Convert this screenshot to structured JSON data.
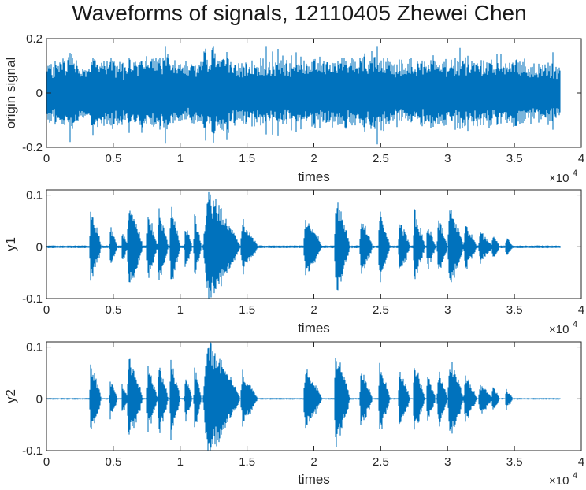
{
  "title": "Waveforms of signals, 12110405 Zhewei Chen",
  "chart_data": [
    {
      "type": "line",
      "ylabel": "origin signal",
      "xlabel": "times",
      "x_exponent_base": "×10",
      "x_exponent_power": "4",
      "xlim": [
        0,
        40000
      ],
      "ylim": [
        -0.2,
        0.2
      ],
      "xticks": [
        0,
        5000,
        10000,
        15000,
        20000,
        25000,
        30000,
        35000,
        40000
      ],
      "xtick_labels": [
        "0",
        "0.5",
        "1",
        "1.5",
        "2",
        "2.5",
        "3",
        "3.5",
        "4"
      ],
      "yticks": [
        -0.2,
        0,
        0.2
      ],
      "ytick_labels": [
        "-0.2",
        "0",
        "0.2"
      ],
      "series_color": "#0072BD",
      "samples_x_end": 38400,
      "envelope_x": [
        0,
        1000,
        2000,
        3000,
        4000,
        5000,
        6000,
        7000,
        8000,
        9000,
        10000,
        11000,
        12000,
        13000,
        14000,
        15000,
        16000,
        17000,
        18000,
        19000,
        20000,
        21000,
        22000,
        23000,
        24000,
        25000,
        26000,
        27000,
        28000,
        29000,
        30000,
        31000,
        32000,
        33000,
        34000,
        35000,
        36000,
        37000,
        38400
      ],
      "envelope_amp": [
        0.1,
        0.12,
        0.13,
        0.11,
        0.13,
        0.12,
        0.1,
        0.13,
        0.12,
        0.14,
        0.11,
        0.12,
        0.14,
        0.16,
        0.12,
        0.11,
        0.12,
        0.12,
        0.1,
        0.12,
        0.13,
        0.11,
        0.13,
        0.12,
        0.13,
        0.14,
        0.12,
        0.12,
        0.11,
        0.13,
        0.12,
        0.13,
        0.13,
        0.12,
        0.12,
        0.12,
        0.11,
        0.11,
        0.1
      ],
      "min_value": -0.2,
      "max_value": 0.17
    },
    {
      "type": "line",
      "ylabel": "y1",
      "xlabel": "times",
      "x_exponent_base": "×10",
      "x_exponent_power": "4",
      "xlim": [
        0,
        40000
      ],
      "ylim": [
        -0.1,
        0.11
      ],
      "xticks": [
        0,
        5000,
        10000,
        15000,
        20000,
        25000,
        30000,
        35000,
        40000
      ],
      "xtick_labels": [
        "0",
        "0.5",
        "1",
        "1.5",
        "2",
        "2.5",
        "3",
        "3.5",
        "4"
      ],
      "yticks": [
        -0.1,
        0,
        0.1
      ],
      "ytick_labels": [
        "-0.1",
        "0",
        "0.1"
      ],
      "series_color": "#0072BD",
      "samples_x_end": 38400,
      "bursts": [
        {
          "start": 3200,
          "end": 4100,
          "amp": 0.07
        },
        {
          "start": 4700,
          "end": 5300,
          "amp": 0.04
        },
        {
          "start": 5600,
          "end": 6100,
          "amp": 0.03
        },
        {
          "start": 6000,
          "end": 7200,
          "amp": 0.085
        },
        {
          "start": 7500,
          "end": 8300,
          "amp": 0.065
        },
        {
          "start": 8300,
          "end": 9100,
          "amp": 0.075
        },
        {
          "start": 9200,
          "end": 10000,
          "amp": 0.075
        },
        {
          "start": 10300,
          "end": 10900,
          "amp": 0.045
        },
        {
          "start": 11000,
          "end": 11600,
          "amp": 0.06
        },
        {
          "start": 11700,
          "end": 14500,
          "amp": 0.105
        },
        {
          "start": 14500,
          "end": 15800,
          "amp": 0.05
        },
        {
          "start": 19200,
          "end": 20600,
          "amp": 0.06
        },
        {
          "start": 21500,
          "end": 22700,
          "amp": 0.09
        },
        {
          "start": 23400,
          "end": 24400,
          "amp": 0.055
        },
        {
          "start": 24800,
          "end": 25700,
          "amp": 0.065
        },
        {
          "start": 26300,
          "end": 27200,
          "amp": 0.055
        },
        {
          "start": 27400,
          "end": 28300,
          "amp": 0.07
        },
        {
          "start": 28400,
          "end": 29100,
          "amp": 0.045
        },
        {
          "start": 29200,
          "end": 30000,
          "amp": 0.055
        },
        {
          "start": 30000,
          "end": 31200,
          "amp": 0.08
        },
        {
          "start": 31200,
          "end": 32200,
          "amp": 0.045
        },
        {
          "start": 32300,
          "end": 33400,
          "amp": 0.03
        },
        {
          "start": 33300,
          "end": 33900,
          "amp": 0.025
        },
        {
          "start": 34300,
          "end": 34900,
          "amp": 0.02
        }
      ],
      "baseline_amp": 0.0025,
      "min_value": -0.1,
      "max_value": 0.107
    },
    {
      "type": "line",
      "ylabel": "y2",
      "xlabel": "times",
      "x_exponent_base": "×10",
      "x_exponent_power": "4",
      "xlim": [
        0,
        40000
      ],
      "ylim": [
        -0.1,
        0.11
      ],
      "xticks": [
        0,
        5000,
        10000,
        15000,
        20000,
        25000,
        30000,
        35000,
        40000
      ],
      "xtick_labels": [
        "0",
        "0.5",
        "1",
        "1.5",
        "2",
        "2.5",
        "3",
        "3.5",
        "4"
      ],
      "yticks": [
        -0.1,
        0,
        0.1
      ],
      "ytick_labels": [
        "-0.1",
        "0",
        "0.1"
      ],
      "series_color": "#0072BD",
      "samples_x_end": 38400,
      "bursts": [
        {
          "start": 3200,
          "end": 4100,
          "amp": 0.07
        },
        {
          "start": 4700,
          "end": 5300,
          "amp": 0.04
        },
        {
          "start": 5600,
          "end": 6100,
          "amp": 0.03
        },
        {
          "start": 6000,
          "end": 7200,
          "amp": 0.085
        },
        {
          "start": 7500,
          "end": 8300,
          "amp": 0.065
        },
        {
          "start": 8300,
          "end": 9100,
          "amp": 0.075
        },
        {
          "start": 9200,
          "end": 10000,
          "amp": 0.075
        },
        {
          "start": 10300,
          "end": 10900,
          "amp": 0.045
        },
        {
          "start": 11000,
          "end": 11600,
          "amp": 0.06
        },
        {
          "start": 11700,
          "end": 14500,
          "amp": 0.11
        },
        {
          "start": 14500,
          "end": 15800,
          "amp": 0.05
        },
        {
          "start": 19200,
          "end": 20600,
          "amp": 0.06
        },
        {
          "start": 21500,
          "end": 22700,
          "amp": 0.09
        },
        {
          "start": 23400,
          "end": 24400,
          "amp": 0.055
        },
        {
          "start": 24800,
          "end": 25700,
          "amp": 0.065
        },
        {
          "start": 26300,
          "end": 27200,
          "amp": 0.055
        },
        {
          "start": 27400,
          "end": 28300,
          "amp": 0.07
        },
        {
          "start": 28400,
          "end": 29100,
          "amp": 0.045
        },
        {
          "start": 29200,
          "end": 30000,
          "amp": 0.055
        },
        {
          "start": 30000,
          "end": 31200,
          "amp": 0.08
        },
        {
          "start": 31200,
          "end": 32200,
          "amp": 0.045
        },
        {
          "start": 32300,
          "end": 33400,
          "amp": 0.03
        },
        {
          "start": 33300,
          "end": 33900,
          "amp": 0.025
        },
        {
          "start": 34300,
          "end": 34900,
          "amp": 0.02
        }
      ],
      "baseline_amp": 0.0015,
      "min_value": -0.1,
      "max_value": 0.11
    }
  ]
}
